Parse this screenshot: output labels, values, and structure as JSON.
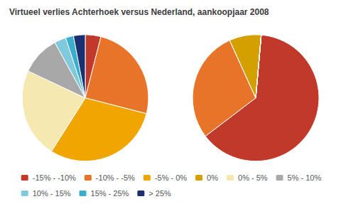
{
  "chart_data": [
    {
      "type": "pie",
      "title": "Virtueel verlies Achterhoek versus Nederland, aankoopjaar 2008",
      "categories": [
        "-15% - -10%",
        "-10% - -5%",
        "-5% - 0%",
        "0%",
        "0% - 5%",
        "5% - 10%",
        "10% - 15%",
        "15% - 25%",
        "> 25%"
      ],
      "values": [
        4,
        25,
        30,
        0,
        23,
        10,
        3,
        2,
        3
      ],
      "colors": [
        "#C0392B",
        "#E8742A",
        "#F0A500",
        "#D4A000",
        "#F5E8B0",
        "#A8A8A8",
        "#80C8DC",
        "#3AAECC",
        "#1A3070"
      ],
      "legend": "bottom"
    },
    {
      "type": "pie",
      "categories": [
        "-15% - -10%",
        "-10% - -5%",
        "-5% - 0%",
        "0%",
        "0% - 5%",
        "5% - 10%",
        "10% - 15%",
        "15% - 25%",
        "> 25%"
      ],
      "values": [
        62,
        28,
        0,
        8,
        0,
        0,
        0,
        0,
        0
      ],
      "colors": [
        "#C0392B",
        "#E8742A",
        "#F0A500",
        "#D4A000",
        "#F5E8B0",
        "#A8A8A8",
        "#80C8DC",
        "#3AAECC",
        "#1A3070"
      ],
      "legend": "bottom"
    }
  ]
}
